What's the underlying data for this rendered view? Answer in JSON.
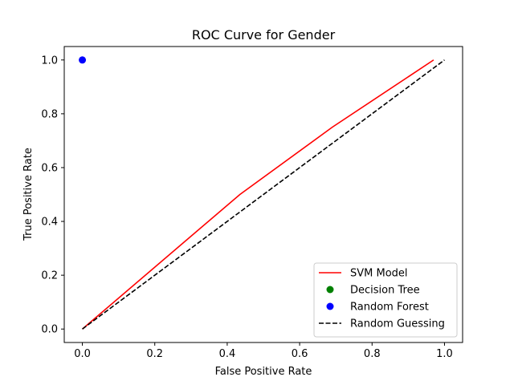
{
  "chart_data": {
    "type": "line",
    "title": "ROC Curve for Gender",
    "xlabel": "False Positive Rate",
    "ylabel": "True Positive Rate",
    "xlim": [
      -0.05,
      1.05
    ],
    "ylim": [
      -0.05,
      1.05
    ],
    "xticks": [
      "0.0",
      "0.2",
      "0.4",
      "0.6",
      "0.8",
      "1.0"
    ],
    "yticks": [
      "0.0",
      "0.2",
      "0.4",
      "0.6",
      "0.8",
      "1.0"
    ],
    "grid": false,
    "legend_position": "lower-right",
    "series": [
      {
        "name": "SVM Model",
        "kind": "line",
        "color": "#ff0000",
        "style": "solid",
        "x": [
          0.0,
          0.435,
          0.69,
          0.97
        ],
        "y": [
          0.0,
          0.5,
          0.75,
          1.0
        ]
      },
      {
        "name": "Decision Tree",
        "kind": "scatter",
        "color": "#008000",
        "x": [],
        "y": []
      },
      {
        "name": "Random Forest",
        "kind": "scatter",
        "color": "#0000ff",
        "x": [
          0.0
        ],
        "y": [
          1.0
        ]
      },
      {
        "name": "Random Guessing",
        "kind": "line",
        "color": "#000000",
        "style": "dashed",
        "x": [
          0.0,
          1.0
        ],
        "y": [
          0.0,
          1.0
        ]
      }
    ]
  }
}
